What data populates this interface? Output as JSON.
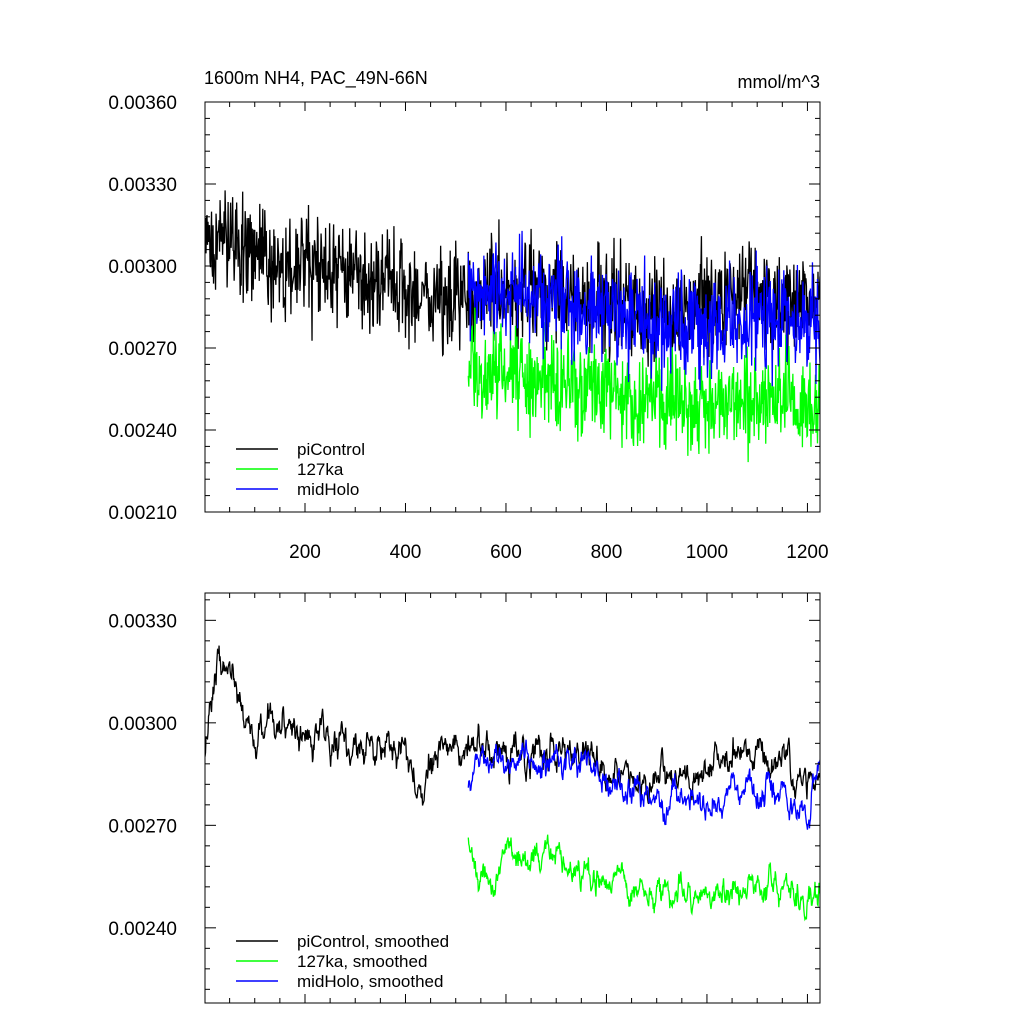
{
  "chart_data": [
    {
      "type": "line",
      "title": "1600m NH4, PAC_49N-66N",
      "units": "mmol/m^3",
      "xlim": [
        1,
        1225
      ],
      "ylim": [
        0.0021,
        0.0036
      ],
      "x_ticks": [
        200,
        400,
        600,
        800,
        1000,
        1200
      ],
      "x_tick_labels": [
        "200",
        "400",
        "600",
        "800",
        "1000",
        "1200"
      ],
      "y_ticks": [
        0.0021,
        0.0024,
        0.0027,
        0.003,
        0.0033,
        0.0036
      ],
      "y_tick_labels": [
        "0.00210",
        "0.00240",
        "0.00270",
        "0.00300",
        "0.00330",
        "0.00360"
      ],
      "legend_position": "bottom-left",
      "series": [
        {
          "name": "piControl",
          "color": "#000000",
          "x_range": [
            1,
            1225
          ],
          "start": 0.00292,
          "anchors": [
            [
              1,
              0.00305
            ],
            [
              50,
              0.00312
            ],
            [
              100,
              0.00305
            ],
            [
              150,
              0.00298
            ],
            [
              200,
              0.003
            ],
            [
              250,
              0.00298
            ],
            [
              300,
              0.00296
            ],
            [
              350,
              0.00292
            ],
            [
              400,
              0.00292
            ],
            [
              450,
              0.00288
            ],
            [
              500,
              0.00288
            ],
            [
              550,
              0.00293
            ],
            [
              600,
              0.00291
            ],
            [
              650,
              0.0029
            ],
            [
              700,
              0.0029
            ],
            [
              750,
              0.00289
            ],
            [
              800,
              0.00288
            ],
            [
              850,
              0.00285
            ],
            [
              900,
              0.00283
            ],
            [
              950,
              0.00284
            ],
            [
              1000,
              0.00286
            ],
            [
              1050,
              0.0029
            ],
            [
              1100,
              0.00289
            ],
            [
              1150,
              0.00287
            ],
            [
              1200,
              0.00284
            ],
            [
              1225,
              0.00286
            ]
          ],
          "noise": 0.00014
        },
        {
          "name": "127ka",
          "color": "#00ff00",
          "x_range": [
            525,
            1225
          ],
          "start": 0.00266,
          "anchors": [
            [
              525,
              0.00266
            ],
            [
              560,
              0.00258
            ],
            [
              600,
              0.00263
            ],
            [
              650,
              0.00258
            ],
            [
              700,
              0.0026
            ],
            [
              750,
              0.00255
            ],
            [
              800,
              0.00256
            ],
            [
              850,
              0.00252
            ],
            [
              900,
              0.0025
            ],
            [
              950,
              0.00253
            ],
            [
              1000,
              0.0025
            ],
            [
              1050,
              0.00251
            ],
            [
              1100,
              0.00253
            ],
            [
              1150,
              0.00252
            ],
            [
              1200,
              0.00249
            ],
            [
              1225,
              0.00252
            ]
          ],
          "noise": 0.00013
        },
        {
          "name": "midHolo",
          "color": "#0000ff",
          "x_range": [
            525,
            1225
          ],
          "start": 0.00288,
          "anchors": [
            [
              525,
              0.00288
            ],
            [
              600,
              0.0029
            ],
            [
              650,
              0.00289
            ],
            [
              700,
              0.00288
            ],
            [
              750,
              0.00287
            ],
            [
              800,
              0.00284
            ],
            [
              850,
              0.00282
            ],
            [
              900,
              0.00279
            ],
            [
              950,
              0.00278
            ],
            [
              1000,
              0.00277
            ],
            [
              1050,
              0.00278
            ],
            [
              1100,
              0.00279
            ],
            [
              1150,
              0.0028
            ],
            [
              1200,
              0.00278
            ],
            [
              1225,
              0.00282
            ]
          ],
          "noise": 0.00014
        }
      ]
    },
    {
      "type": "line",
      "xlim": [
        1,
        1225
      ],
      "ylim": [
        0.00218,
        0.00338
      ],
      "x_ticks": [
        200,
        400,
        600,
        800,
        1000,
        1200
      ],
      "y_ticks": [
        0.0024,
        0.0027,
        0.003,
        0.0033
      ],
      "y_tick_labels": [
        "0.00240",
        "0.00270",
        "0.00300",
        "0.00330"
      ],
      "legend_position": "bottom-left",
      "series": [
        {
          "name": "piControl, smoothed",
          "color": "#000000",
          "x_range": [
            1,
            1225
          ],
          "anchors": [
            [
              1,
              0.00293
            ],
            [
              25,
              0.00318
            ],
            [
              50,
              0.00314
            ],
            [
              100,
              0.00296
            ],
            [
              150,
              0.00302
            ],
            [
              200,
              0.00297
            ],
            [
              250,
              0.00297
            ],
            [
              300,
              0.00294
            ],
            [
              350,
              0.00292
            ],
            [
              400,
              0.0029
            ],
            [
              425,
              0.00282
            ],
            [
              450,
              0.0029
            ],
            [
              500,
              0.00292
            ],
            [
              550,
              0.00293
            ],
            [
              600,
              0.00292
            ],
            [
              650,
              0.00291
            ],
            [
              700,
              0.00291
            ],
            [
              750,
              0.00289
            ],
            [
              800,
              0.00288
            ],
            [
              850,
              0.00283
            ],
            [
              900,
              0.00281
            ],
            [
              950,
              0.00284
            ],
            [
              1000,
              0.00285
            ],
            [
              1050,
              0.00291
            ],
            [
              1100,
              0.0029
            ],
            [
              1150,
              0.00288
            ],
            [
              1200,
              0.00283
            ],
            [
              1225,
              0.00286
            ]
          ],
          "noise": 4.5e-05
        },
        {
          "name": "127ka, smoothed",
          "color": "#00ff00",
          "x_range": [
            525,
            1225
          ],
          "anchors": [
            [
              525,
              0.00265
            ],
            [
              550,
              0.00256
            ],
            [
              575,
              0.00252
            ],
            [
              600,
              0.00262
            ],
            [
              650,
              0.00259
            ],
            [
              700,
              0.00261
            ],
            [
              750,
              0.00256
            ],
            [
              800,
              0.00256
            ],
            [
              850,
              0.00252
            ],
            [
              900,
              0.00248
            ],
            [
              950,
              0.00252
            ],
            [
              1000,
              0.00248
            ],
            [
              1050,
              0.00252
            ],
            [
              1100,
              0.00253
            ],
            [
              1150,
              0.00252
            ],
            [
              1200,
              0.00246
            ],
            [
              1225,
              0.00252
            ]
          ],
          "noise": 4e-05
        },
        {
          "name": "midHolo, smoothed",
          "color": "#0000ff",
          "x_range": [
            525,
            1225
          ],
          "anchors": [
            [
              525,
              0.00282
            ],
            [
              550,
              0.00293
            ],
            [
              600,
              0.0029
            ],
            [
              650,
              0.00289
            ],
            [
              700,
              0.00288
            ],
            [
              750,
              0.00287
            ],
            [
              800,
              0.00283
            ],
            [
              850,
              0.0028
            ],
            [
              900,
              0.00277
            ],
            [
              950,
              0.00278
            ],
            [
              1000,
              0.00276
            ],
            [
              1050,
              0.00278
            ],
            [
              1100,
              0.0028
            ],
            [
              1150,
              0.00278
            ],
            [
              1200,
              0.0027
            ],
            [
              1225,
              0.00288
            ]
          ],
          "noise": 4e-05
        }
      ]
    }
  ]
}
